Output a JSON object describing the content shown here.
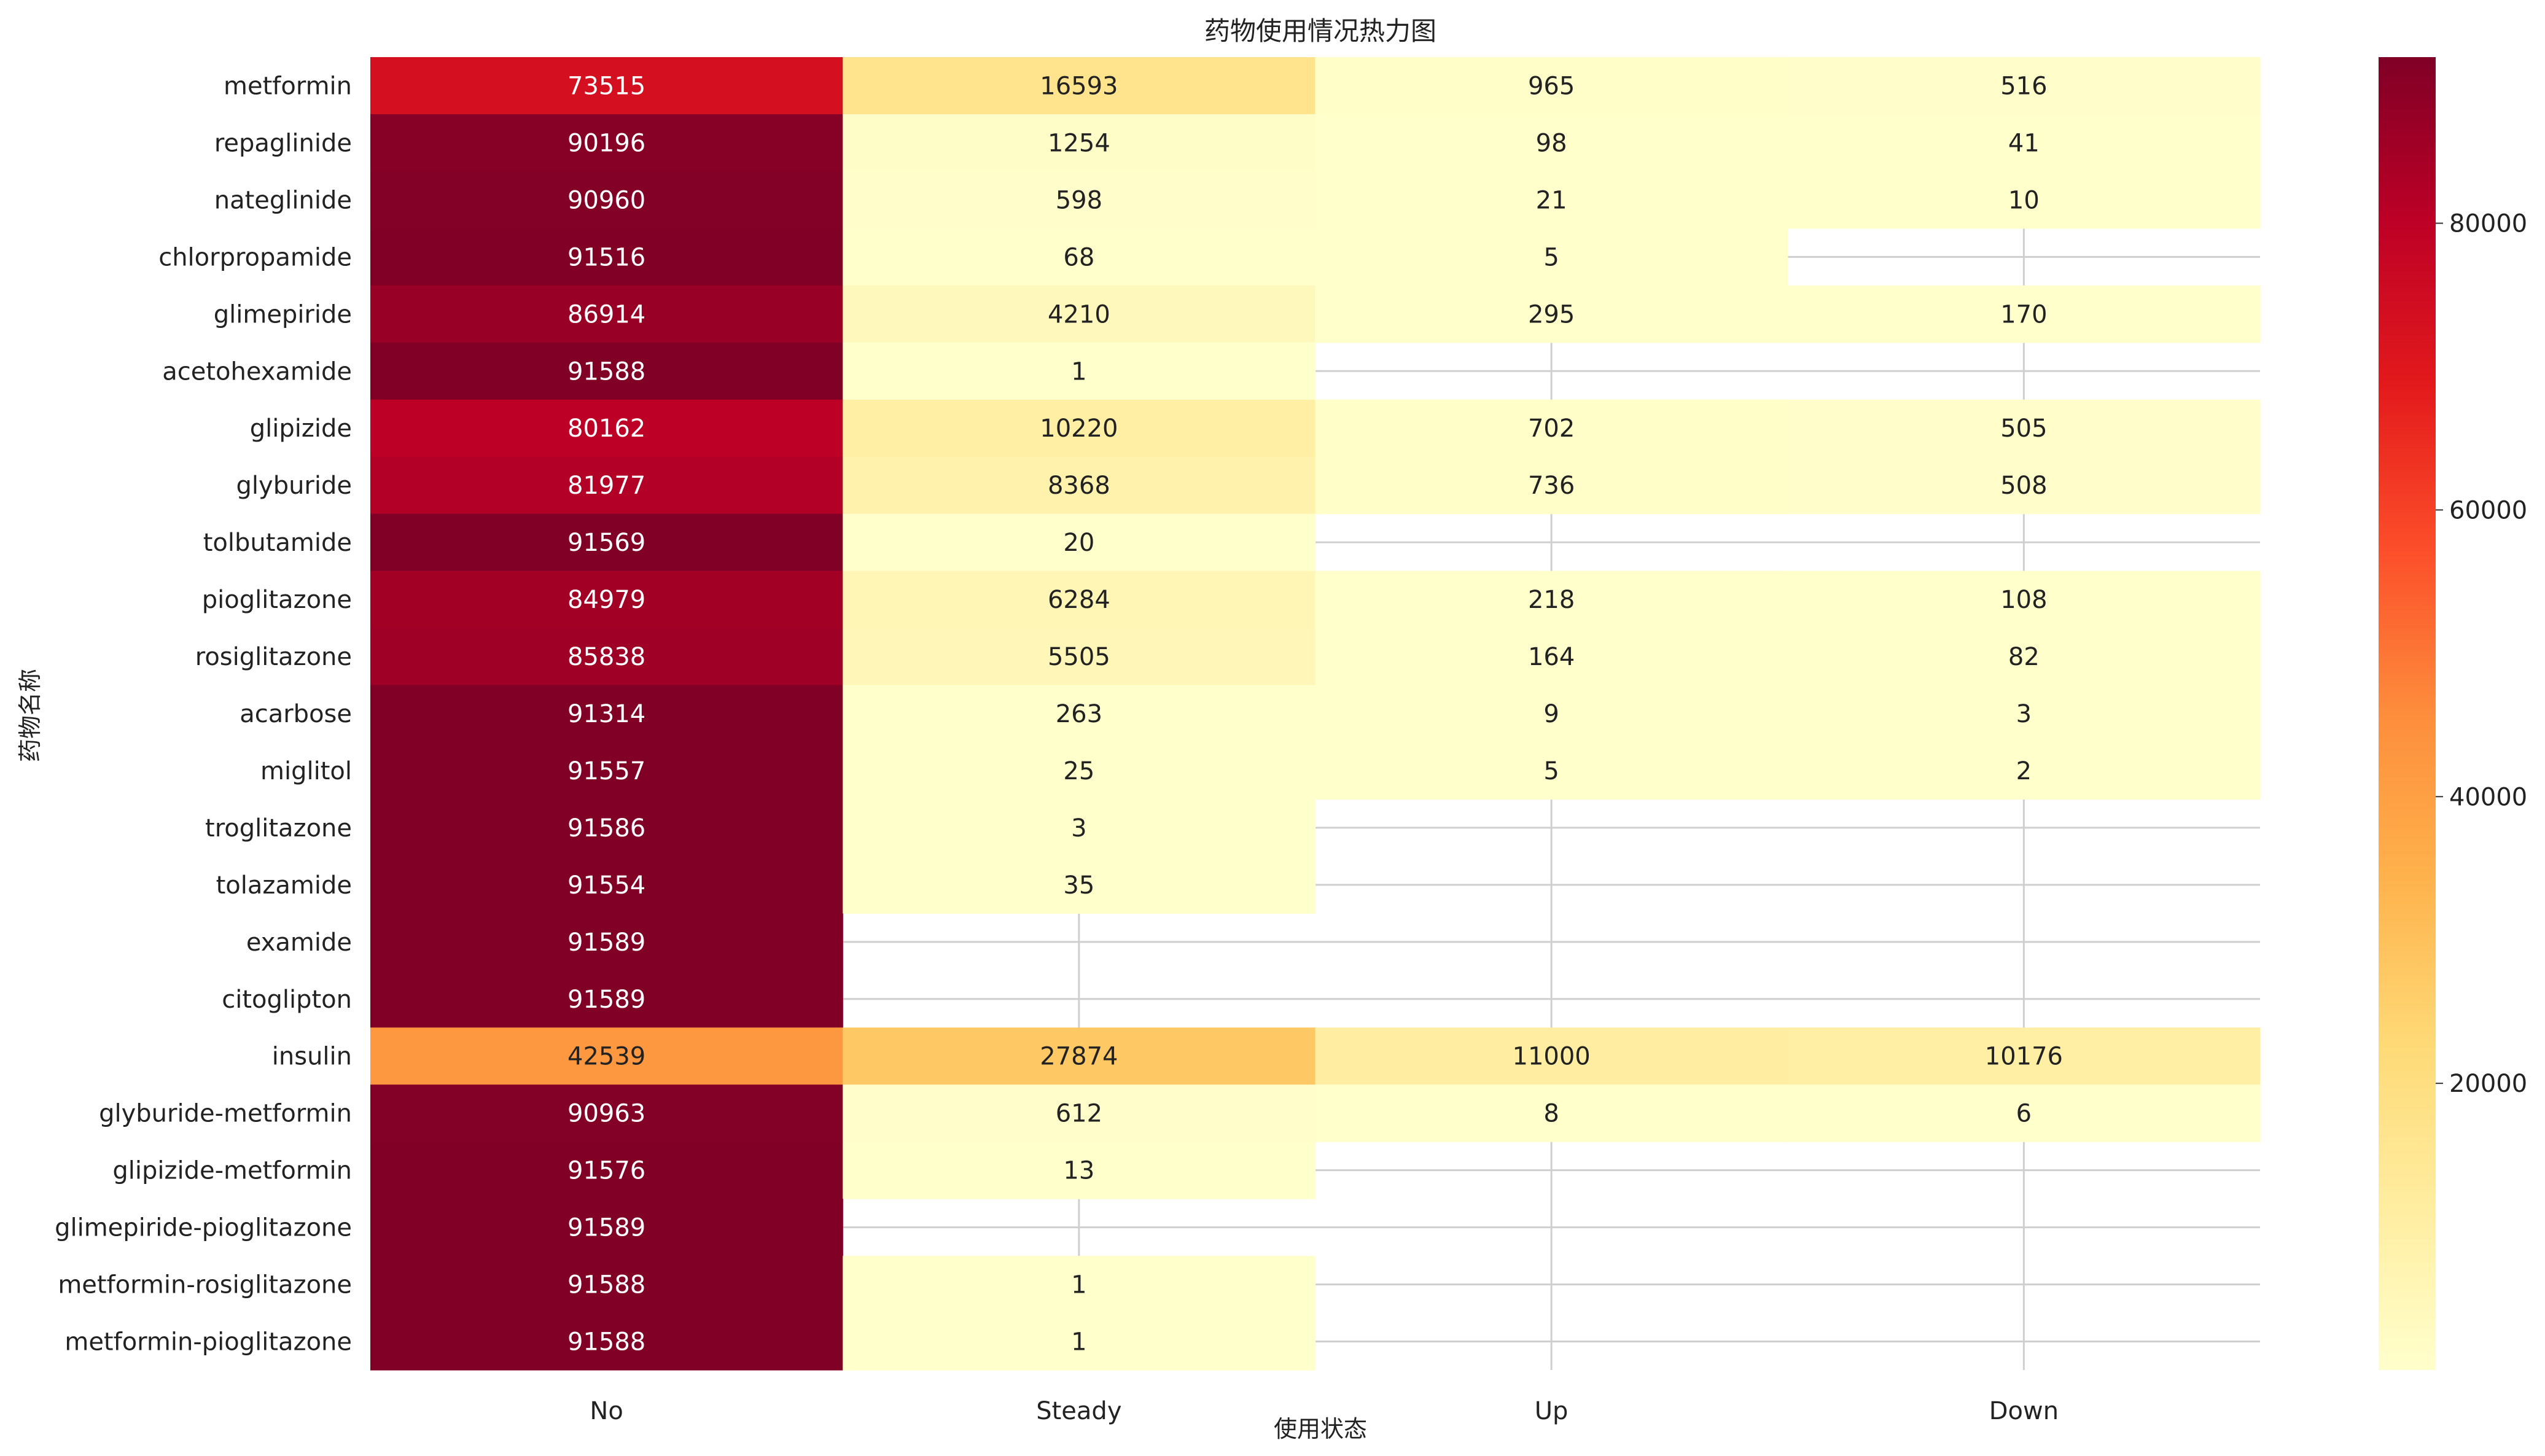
{
  "chart_data": {
    "type": "heatmap",
    "title": "药物使用情况热力图",
    "xlabel": "使用状态",
    "ylabel": "药物名称",
    "columns": [
      "No",
      "Steady",
      "Up",
      "Down"
    ],
    "rows": [
      "metformin",
      "repaglinide",
      "nateglinide",
      "chlorpropamide",
      "glimepiride",
      "acetohexamide",
      "glipizide",
      "glyburide",
      "tolbutamide",
      "pioglitazone",
      "rosiglitazone",
      "acarbose",
      "miglitol",
      "troglitazone",
      "tolazamide",
      "examide",
      "citoglipton",
      "insulin",
      "glyburide-metformin",
      "glipizide-metformin",
      "glimepiride-pioglitazone",
      "metformin-rosiglitazone",
      "metformin-pioglitazone"
    ],
    "values": [
      [
        73515,
        16593,
        965,
        516
      ],
      [
        90196,
        1254,
        98,
        41
      ],
      [
        90960,
        598,
        21,
        10
      ],
      [
        91516,
        68,
        5,
        null
      ],
      [
        86914,
        4210,
        295,
        170
      ],
      [
        91588,
        1,
        null,
        null
      ],
      [
        80162,
        10220,
        702,
        505
      ],
      [
        81977,
        8368,
        736,
        508
      ],
      [
        91569,
        20,
        null,
        null
      ],
      [
        84979,
        6284,
        218,
        108
      ],
      [
        85838,
        5505,
        164,
        82
      ],
      [
        91314,
        263,
        9,
        3
      ],
      [
        91557,
        25,
        5,
        2
      ],
      [
        91586,
        3,
        null,
        null
      ],
      [
        91554,
        35,
        null,
        null
      ],
      [
        91589,
        null,
        null,
        null
      ],
      [
        91589,
        null,
        null,
        null
      ],
      [
        42539,
        27874,
        11000,
        10176
      ],
      [
        90963,
        612,
        8,
        6
      ],
      [
        91576,
        13,
        null,
        null
      ],
      [
        91589,
        null,
        null,
        null
      ],
      [
        91588,
        1,
        null,
        null
      ],
      [
        91588,
        1,
        null,
        null
      ]
    ],
    "colormap": "YlOrRd",
    "color_range": [
      1,
      91589
    ],
    "colorbar_ticks": [
      20000,
      40000,
      60000,
      80000
    ],
    "grid": true,
    "annotations": true
  }
}
